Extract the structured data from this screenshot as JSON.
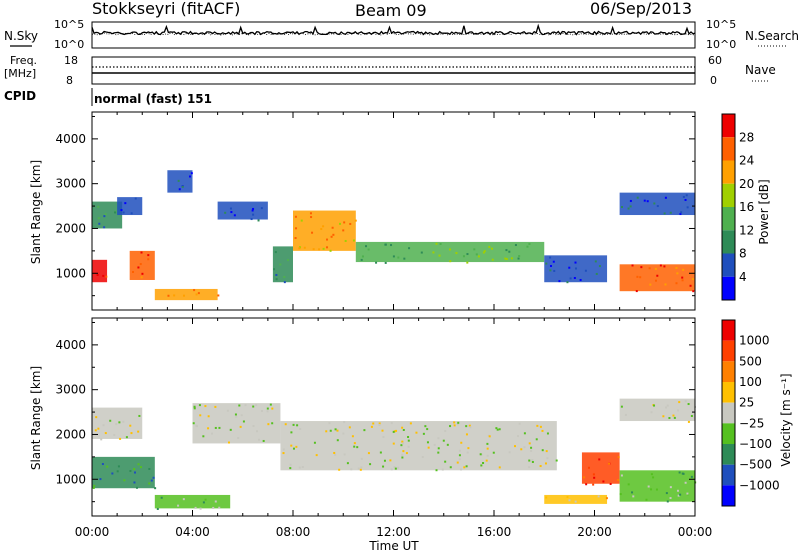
{
  "header": {
    "station": "Stokkseyri (fitACF)",
    "beam": "Beam 09",
    "date": "06/Sep/2013"
  },
  "panels_top": {
    "nsky_label": "N.Sky",
    "nsearch_label": "N.Search",
    "noise_ticks_left": [
      "10^5",
      "10^0"
    ],
    "noise_ticks_right": [
      "10^5",
      "10^0"
    ],
    "freq_label_1": "Freq.",
    "freq_label_2": "[MHz]",
    "freq_ticks": [
      "18",
      "8"
    ],
    "nave_label": "Nave",
    "nave_ticks": [
      "60",
      "0"
    ],
    "cpid_label": "CPID",
    "cpid_text": "normal (fast) 151"
  },
  "colors": {
    "power": [
      "#0000ff",
      "#1f4fbd",
      "#2e8b57",
      "#4fb04f",
      "#a0d000",
      "#ffa000",
      "#ff6000",
      "#ee0000"
    ],
    "velocity": [
      "#0000ff",
      "#1f4fbd",
      "#2e8b57",
      "#55c020",
      "#c8c8c0",
      "#ffc000",
      "#ff8000",
      "#ff4000",
      "#ee0000"
    ]
  },
  "chart_data": [
    {
      "type": "heatmap",
      "name": "power",
      "xlabel": "",
      "ylabel": "Slant Range [km]",
      "ylim": [
        180,
        4600
      ],
      "y_ticks": [
        1000,
        2000,
        3000,
        4000
      ],
      "colorbar_label": "Power [dB]",
      "colorbar_ticks": [
        "28",
        "24",
        "20",
        "16",
        "12",
        "8",
        "4"
      ],
      "regions": [
        {
          "t0": 0.0,
          "t1": 0.6,
          "r0": 800,
          "r1": 1300,
          "level": 7
        },
        {
          "t0": 0.0,
          "t1": 1.2,
          "r0": 2000,
          "r1": 2600,
          "level": 2
        },
        {
          "t0": 1.5,
          "t1": 2.5,
          "r0": 850,
          "r1": 1500,
          "level": 6
        },
        {
          "t0": 1.0,
          "t1": 2.0,
          "r0": 2300,
          "r1": 2700,
          "level": 1
        },
        {
          "t0": 2.5,
          "t1": 5.0,
          "r0": 400,
          "r1": 650,
          "level": 5
        },
        {
          "t0": 3.0,
          "t1": 4.0,
          "r0": 2800,
          "r1": 3300,
          "level": 1
        },
        {
          "t0": 5.0,
          "t1": 7.0,
          "r0": 2200,
          "r1": 2600,
          "level": 1
        },
        {
          "t0": 7.2,
          "t1": 8.0,
          "r0": 800,
          "r1": 1600,
          "level": 2
        },
        {
          "t0": 8.0,
          "t1": 10.5,
          "r0": 1500,
          "r1": 2400,
          "level": 5
        },
        {
          "t0": 10.5,
          "t1": 18.0,
          "r0": 1250,
          "r1": 1700,
          "level": 3
        },
        {
          "t0": 18.0,
          "t1": 20.5,
          "r0": 800,
          "r1": 1400,
          "level": 1
        },
        {
          "t0": 21.0,
          "t1": 24.0,
          "r0": 600,
          "r1": 1200,
          "level": 6
        },
        {
          "t0": 21.0,
          "t1": 24.0,
          "r0": 2300,
          "r1": 2800,
          "level": 1
        }
      ]
    },
    {
      "type": "heatmap",
      "name": "velocity",
      "xlabel": "Time UT",
      "ylabel": "Slant Range [km]",
      "ylim": [
        180,
        4600
      ],
      "y_ticks": [
        1000,
        2000,
        3000,
        4000
      ],
      "x_ticks": [
        "00:00",
        "04:00",
        "08:00",
        "12:00",
        "16:00",
        "20:00",
        "00:00"
      ],
      "colorbar_label": "Velocity [m s⁻¹]",
      "colorbar_ticks": [
        "1000",
        "500",
        "100",
        "25",
        "−25",
        "−100",
        "−500",
        "−1000"
      ],
      "regions": [
        {
          "t0": 0.0,
          "t1": 2.5,
          "r0": 800,
          "r1": 1500,
          "level": 2
        },
        {
          "t0": 0.0,
          "t1": 2.0,
          "r0": 1900,
          "r1": 2600,
          "level": 4
        },
        {
          "t0": 2.5,
          "t1": 5.5,
          "r0": 350,
          "r1": 650,
          "level": 3
        },
        {
          "t0": 4.0,
          "t1": 7.5,
          "r0": 1800,
          "r1": 2700,
          "level": 4
        },
        {
          "t0": 7.5,
          "t1": 18.5,
          "r0": 1200,
          "r1": 2300,
          "level": 4
        },
        {
          "t0": 18.0,
          "t1": 20.5,
          "r0": 450,
          "r1": 650,
          "level": 5
        },
        {
          "t0": 19.5,
          "t1": 21.0,
          "r0": 900,
          "r1": 1600,
          "level": 7
        },
        {
          "t0": 21.0,
          "t1": 24.0,
          "r0": 500,
          "r1": 1200,
          "level": 3
        },
        {
          "t0": 21.0,
          "t1": 24.0,
          "r0": 2300,
          "r1": 2800,
          "level": 4
        }
      ]
    }
  ]
}
